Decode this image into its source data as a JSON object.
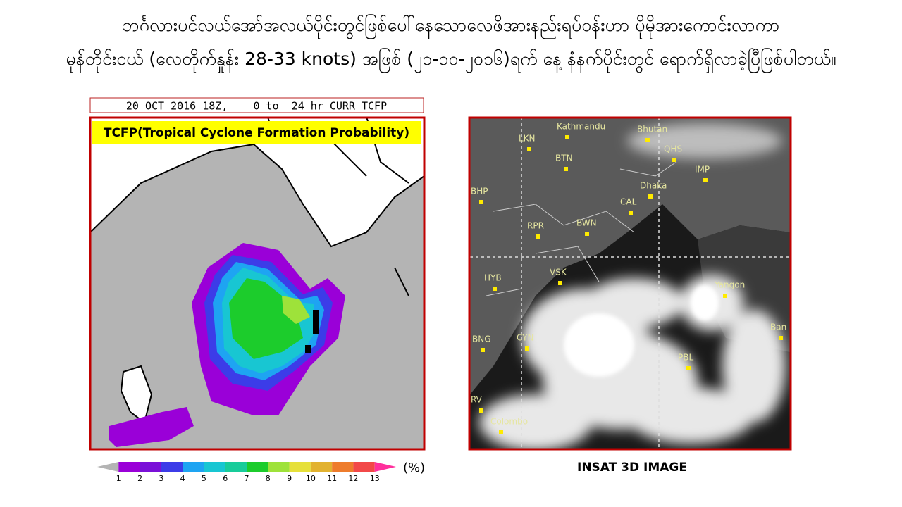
{
  "header": {
    "line1": "ဘင်္ဂလားပင်လယ်အော်အလယ်ပိုင်းတွင်ဖြစ်ပေါ်နေသောလေဖိအားနည်းရပ်ဝန်းဟာ ပိုမိုအားကောင်းလာကာ",
    "line2": "မုန်တိုင်းငယ် (လေတိုက်နှုန်း  28-33 knots) အဖြစ် (၂၁-၁၀-၂၀၁၆)ရက် နေ့ နံနက်ပိုင်းတွင် ရောက်ရှိလာခဲ့ပြီဖြစ်ပါတယ်။"
  },
  "tcfp_map": {
    "header": "20 OCT 2016 18Z,    0 to  24 hr CURR TCFP",
    "label": "TCFP(Tropical Cyclone Formation Probability)",
    "colorbar": {
      "ticks": [
        1,
        2,
        3,
        4,
        5,
        6,
        7,
        8,
        9,
        10,
        11,
        12,
        13
      ],
      "unit": "(%)",
      "colors": [
        "#b4b4b4",
        "#9a00d8",
        "#7a10d8",
        "#3c3ce8",
        "#1ea4f2",
        "#18c6d2",
        "#18cc9a",
        "#1ccc2c",
        "#9ee23a",
        "#e6e03a",
        "#e2b230",
        "#ee7c2c",
        "#f24848",
        "#ff2f9c"
      ]
    }
  },
  "satellite": {
    "caption": "INSAT 3D IMAGE",
    "places": [
      "Kathmandu",
      "Bhutan",
      "LKN",
      "BTN",
      "QHS",
      "IMP",
      "Dhaka",
      "CAL",
      "BHP",
      "RPR",
      "BWN",
      "HYB",
      "VSK",
      "Yangon",
      "Ban",
      "BNG",
      "CYN",
      "PBL",
      "RV",
      "Colombo"
    ]
  }
}
